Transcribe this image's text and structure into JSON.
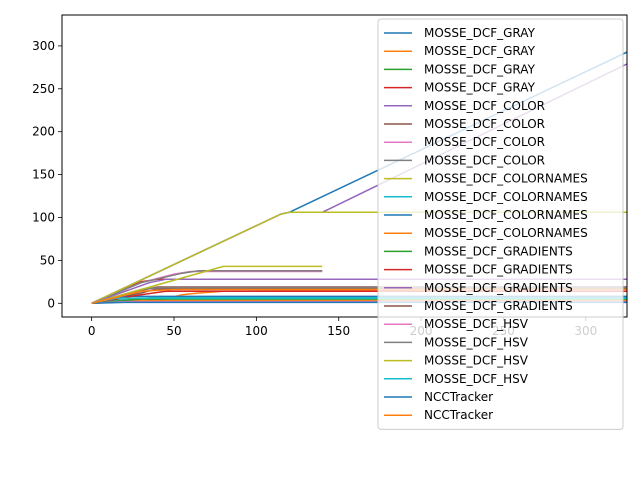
{
  "chart_data": {
    "type": "line",
    "title": "",
    "xlabel": "",
    "ylabel": "",
    "xlim": [
      -18,
      325
    ],
    "ylim": [
      -16,
      336
    ],
    "xticks": [
      0,
      50,
      100,
      150,
      200,
      250,
      300
    ],
    "xtick_labels": [
      "0",
      "50",
      "100",
      "150",
      "200",
      "250",
      "300"
    ],
    "yticks": [
      0,
      50,
      100,
      150,
      200,
      250,
      300
    ],
    "ytick_labels": [
      "0",
      "50",
      "100",
      "150",
      "200",
      "250",
      "300"
    ],
    "grid": false,
    "legend_position": "top-right",
    "series": [
      {
        "name": "MOSSE_DCF_GRAY",
        "color": "#1f77b4",
        "x": [
          0,
          115,
          120,
          355
        ],
        "y": [
          0,
          104,
          106,
          320
        ]
      },
      {
        "name": "MOSSE_DCF_GRAY",
        "color": "#ff7f0e",
        "x": [
          0,
          25,
          45,
          55,
          65,
          80,
          140,
          300,
          355
        ],
        "y": [
          0,
          2,
          5,
          10,
          12,
          14,
          15,
          17,
          18
        ]
      },
      {
        "name": "MOSSE_DCF_GRAY",
        "color": "#2ca02c",
        "x": [
          0,
          10,
          30,
          355
        ],
        "y": [
          0,
          3,
          5,
          5
        ]
      },
      {
        "name": "MOSSE_DCF_GRAY",
        "color": "#d62728",
        "x": [
          0,
          30,
          40,
          140
        ],
        "y": [
          0,
          25,
          28,
          28
        ]
      },
      {
        "name": "MOSSE_DCF_COLOR",
        "color": "#9467bd",
        "x": [
          0,
          115,
          120,
          140,
          355
        ],
        "y": [
          0,
          104,
          106,
          106,
          307
        ]
      },
      {
        "name": "MOSSE_DCF_COLOR",
        "color": "#8c564b",
        "x": [
          0,
          30,
          40,
          355
        ],
        "y": [
          0,
          12,
          17,
          17
        ]
      },
      {
        "name": "MOSSE_DCF_COLOR",
        "color": "#e377c2",
        "x": [
          0,
          30,
          50,
          60,
          140
        ],
        "y": [
          0,
          24,
          34,
          37,
          37
        ]
      },
      {
        "name": "MOSSE_DCF_COLOR",
        "color": "#7f7f7f",
        "x": [
          0,
          30,
          55,
          65,
          140
        ],
        "y": [
          0,
          24,
          35,
          38,
          38
        ]
      },
      {
        "name": "MOSSE_DCF_COLORNAMES",
        "color": "#bcbd22",
        "x": [
          0,
          115,
          120,
          355
        ],
        "y": [
          0,
          104,
          106,
          106
        ]
      },
      {
        "name": "MOSSE_DCF_COLORNAMES",
        "color": "#17becf",
        "x": [
          0,
          20,
          40,
          355
        ],
        "y": [
          0,
          4,
          7,
          7
        ]
      },
      {
        "name": "MOSSE_DCF_COLORNAMES",
        "color": "#1f77b4",
        "x": [
          0,
          20,
          355
        ],
        "y": [
          0,
          8,
          8
        ]
      },
      {
        "name": "MOSSE_DCF_COLORNAMES",
        "color": "#ff7f0e",
        "x": [
          0,
          20,
          355
        ],
        "y": [
          0,
          3,
          3
        ]
      },
      {
        "name": "MOSSE_DCF_GRADIENTS",
        "color": "#2ca02c",
        "x": [
          0,
          30,
          355
        ],
        "y": [
          0,
          5,
          5
        ]
      },
      {
        "name": "MOSSE_DCF_GRADIENTS",
        "color": "#d62728",
        "x": [
          0,
          30,
          45,
          355
        ],
        "y": [
          0,
          10,
          14,
          14
        ]
      },
      {
        "name": "MOSSE_DCF_GRADIENTS",
        "color": "#9467bd",
        "x": [
          0,
          35,
          45,
          355
        ],
        "y": [
          0,
          24,
          28,
          28
        ]
      },
      {
        "name": "MOSSE_DCF_GRADIENTS",
        "color": "#8c564b",
        "x": [
          0,
          30,
          40,
          355
        ],
        "y": [
          0,
          15,
          19,
          19
        ]
      },
      {
        "name": "MOSSE_DCF_HSV",
        "color": "#e377c2",
        "x": [
          0,
          20,
          355
        ],
        "y": [
          0,
          2,
          2
        ]
      },
      {
        "name": "MOSSE_DCF_HSV",
        "color": "#7f7f7f",
        "x": [
          0,
          30,
          40,
          355
        ],
        "y": [
          0,
          16,
          18,
          18
        ]
      },
      {
        "name": "MOSSE_DCF_HSV",
        "color": "#bcbd22",
        "x": [
          0,
          80,
          140
        ],
        "y": [
          0,
          43,
          43
        ]
      },
      {
        "name": "MOSSE_DCF_HSV",
        "color": "#17becf",
        "x": [
          0,
          15,
          355
        ],
        "y": [
          0,
          6,
          6
        ]
      },
      {
        "name": "NCCTracker",
        "color": "#1f77b4",
        "x": [
          0,
          20,
          355
        ],
        "y": [
          0,
          1,
          1
        ]
      },
      {
        "name": "NCCTracker",
        "color": "#ff7f0e",
        "x": [
          0,
          30,
          50,
          355
        ],
        "y": [
          0,
          14,
          16,
          16
        ]
      }
    ]
  }
}
